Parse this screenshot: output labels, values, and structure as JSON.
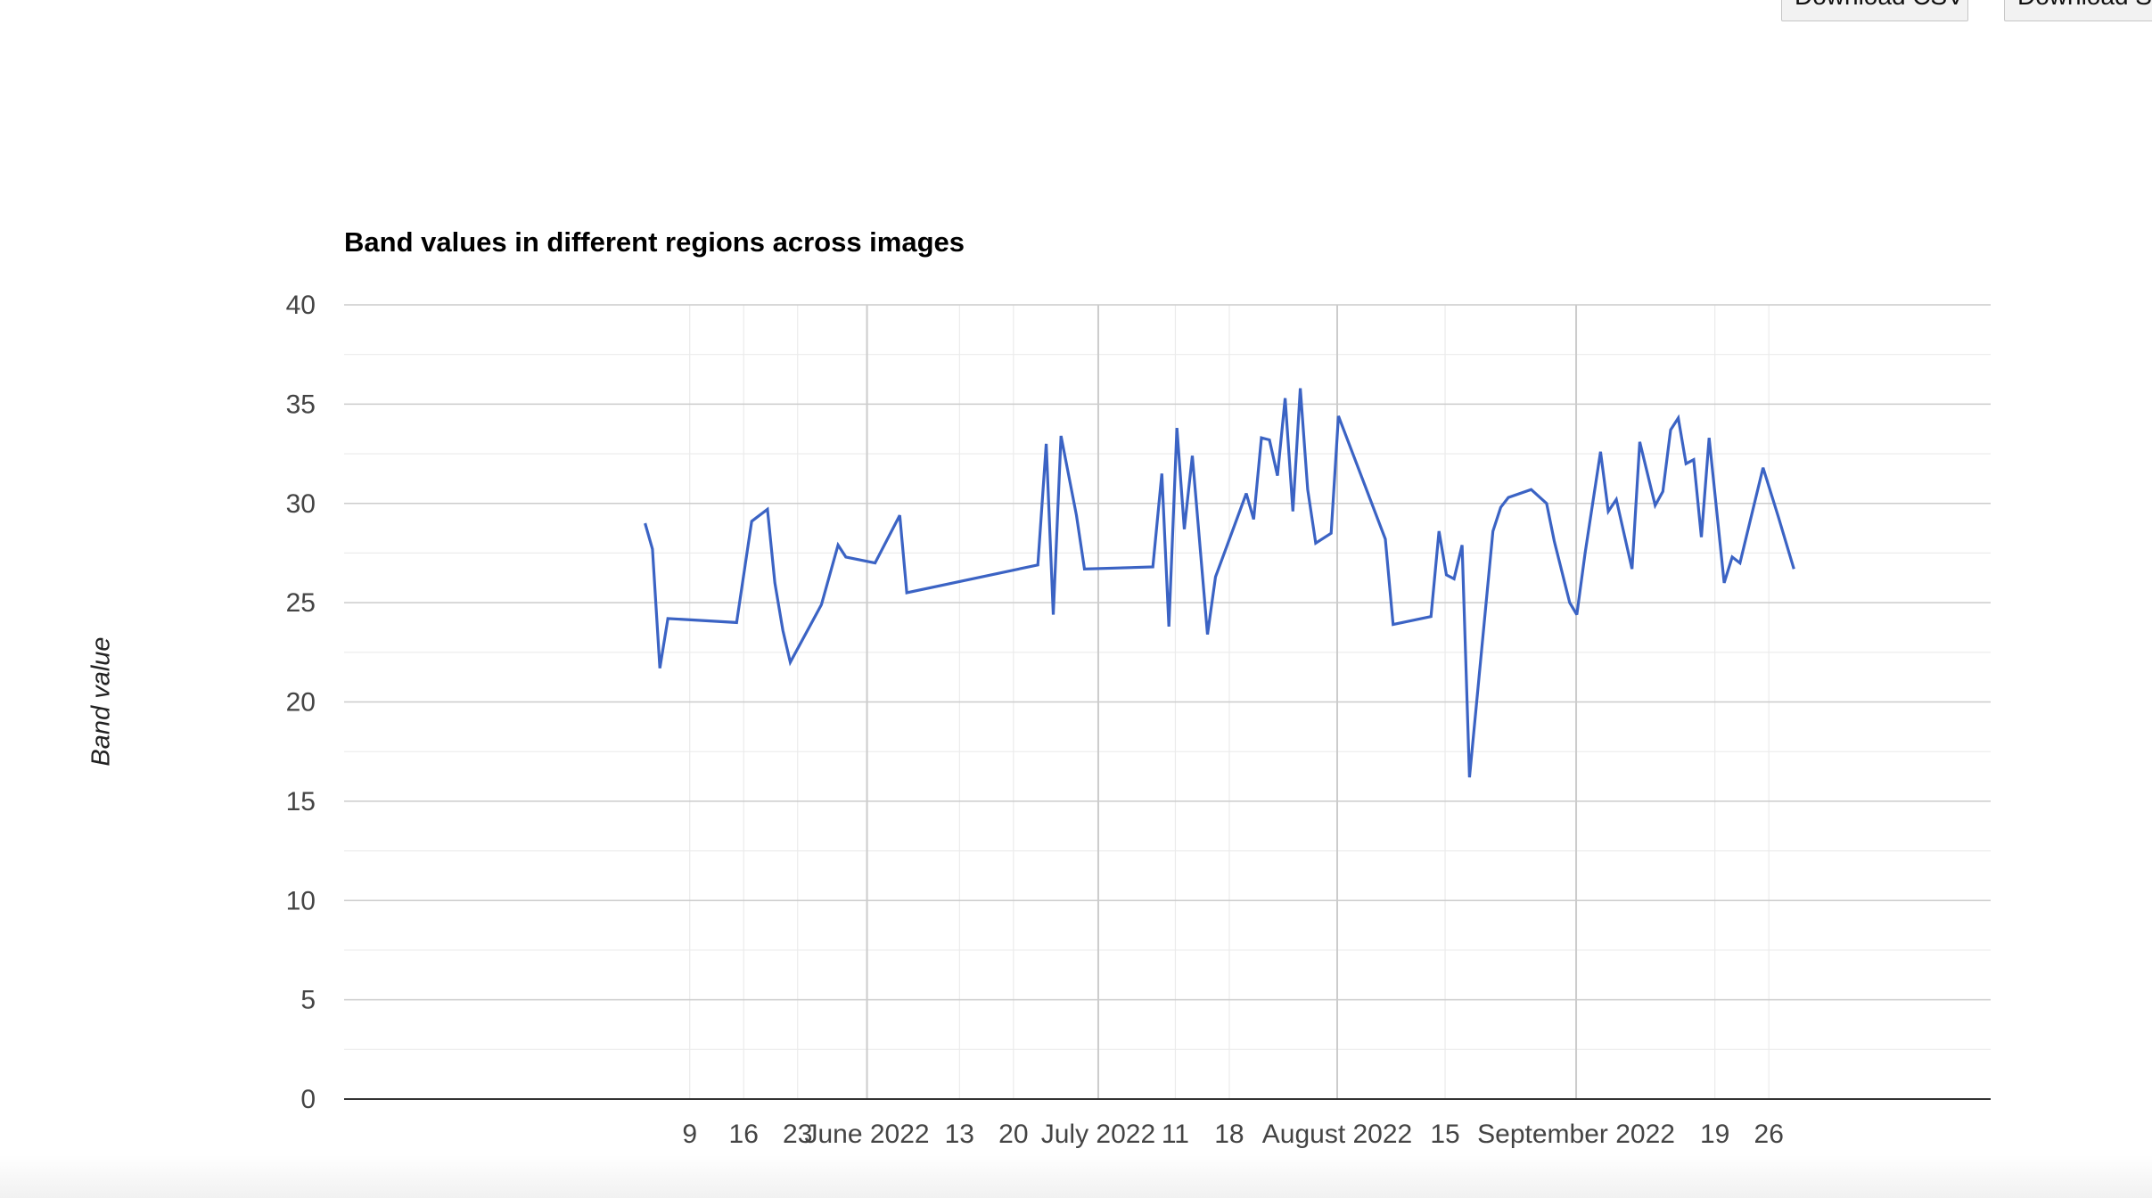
{
  "toolbar": {
    "download_csv_label": "Download CSV",
    "download_svg_label": "Download SVG"
  },
  "colors": {
    "series": "#3b63c4",
    "major_grid": "#cccccc",
    "minor_grid": "#ebebeb",
    "axis": "#333333",
    "text": "#444444"
  },
  "chart_data": {
    "type": "line",
    "title": "Band values in different regions across images",
    "xlabel": "",
    "ylabel": "Band value",
    "ylim": [
      0,
      40
    ],
    "xlim": [
      "2022-05-05",
      "2022-09-30"
    ],
    "grid": true,
    "y_ticks": [
      "0",
      "5",
      "10",
      "15",
      "20",
      "25",
      "30",
      "35",
      "40"
    ],
    "x_ticks": [
      {
        "date": "2022-05-09",
        "label": "9"
      },
      {
        "date": "2022-05-16",
        "label": "16"
      },
      {
        "date": "2022-05-23",
        "label": "23"
      },
      {
        "date": "2022-06-01",
        "label": "June 2022",
        "major": true
      },
      {
        "date": "2022-06-13",
        "label": "13"
      },
      {
        "date": "2022-06-20",
        "label": "20"
      },
      {
        "date": "2022-07-01",
        "label": "July 2022",
        "major": true
      },
      {
        "date": "2022-07-11",
        "label": "11"
      },
      {
        "date": "2022-07-18",
        "label": "18"
      },
      {
        "date": "2022-08-01",
        "label": "August 2022",
        "major": true
      },
      {
        "date": "2022-08-15",
        "label": "15"
      },
      {
        "date": "2022-09-01",
        "label": "September 2022",
        "major": true
      },
      {
        "date": "2022-09-19",
        "label": "19"
      },
      {
        "date": "2022-09-26",
        "label": "26"
      }
    ],
    "series": [
      {
        "name": "",
        "points": [
          [
            "2022-05-03T05:00",
            29.0
          ],
          [
            "2022-05-04T04:00",
            27.7
          ],
          [
            "2022-05-05T03:00",
            21.7
          ],
          [
            "2022-05-06T04:00",
            24.2
          ],
          [
            "2022-05-15T02:00",
            24.0
          ],
          [
            "2022-05-17T01:00",
            29.1
          ],
          [
            "2022-05-19T02:00",
            29.7
          ],
          [
            "2022-05-20T01:00",
            26.0
          ],
          [
            "2022-05-21T02:00",
            23.6
          ],
          [
            "2022-05-22T01:00",
            22.0
          ],
          [
            "2022-05-26T02:00",
            24.9
          ],
          [
            "2022-05-28T06:00",
            27.9
          ],
          [
            "2022-05-29T06:00",
            27.3
          ],
          [
            "2022-06-02T01:00",
            27.0
          ],
          [
            "2022-06-05T06:00",
            29.4
          ],
          [
            "2022-06-06T04:00",
            25.5
          ],
          [
            "2022-06-23T04:00",
            26.9
          ],
          [
            "2022-06-24T06:00",
            33.0
          ],
          [
            "2022-06-25T04:00",
            24.4
          ],
          [
            "2022-06-26T04:00",
            33.4
          ],
          [
            "2022-06-28T04:00",
            29.4
          ],
          [
            "2022-06-29T05:00",
            26.7
          ],
          [
            "2022-07-08T02:00",
            26.8
          ],
          [
            "2022-07-09T06:00",
            31.5
          ],
          [
            "2022-07-10T04:00",
            23.8
          ],
          [
            "2022-07-11T05:00",
            33.8
          ],
          [
            "2022-07-12T04:00",
            28.7
          ],
          [
            "2022-07-13T05:00",
            32.4
          ],
          [
            "2022-07-15T04:00",
            23.4
          ],
          [
            "2022-07-16T05:00",
            26.3
          ],
          [
            "2022-07-20T05:00",
            30.5
          ],
          [
            "2022-07-21T04:00",
            29.2
          ],
          [
            "2022-07-22T04:00",
            33.3
          ],
          [
            "2022-07-23T05:00",
            33.2
          ],
          [
            "2022-07-24T06:00",
            31.4
          ],
          [
            "2022-07-25T06:00",
            35.3
          ],
          [
            "2022-07-26T06:00",
            29.6
          ],
          [
            "2022-07-27T05:00",
            35.8
          ],
          [
            "2022-07-28T04:00",
            30.7
          ],
          [
            "2022-07-29T05:00",
            28.0
          ],
          [
            "2022-07-31T05:00",
            28.5
          ],
          [
            "2022-08-01T04:00",
            34.4
          ],
          [
            "2022-08-07T06:00",
            28.2
          ],
          [
            "2022-08-08T06:00",
            23.9
          ],
          [
            "2022-08-13T04:00",
            24.3
          ],
          [
            "2022-08-14T05:00",
            28.6
          ],
          [
            "2022-08-15T04:00",
            26.4
          ],
          [
            "2022-08-16T04:00",
            26.2
          ],
          [
            "2022-08-17T05:00",
            27.9
          ],
          [
            "2022-08-18T04:00",
            16.2
          ],
          [
            "2022-08-21T05:00",
            28.6
          ],
          [
            "2022-08-22T05:00",
            29.8
          ],
          [
            "2022-08-23T05:00",
            30.3
          ],
          [
            "2022-08-26T04:00",
            30.7
          ],
          [
            "2022-08-28T04:00",
            30.0
          ],
          [
            "2022-08-29T04:00",
            28.1
          ],
          [
            "2022-08-31T04:00",
            25.0
          ],
          [
            "2022-09-01T02:00",
            24.4
          ],
          [
            "2022-09-02T04:00",
            27.5
          ],
          [
            "2022-09-04T04:00",
            32.6
          ],
          [
            "2022-09-05T04:00",
            29.6
          ],
          [
            "2022-09-06T05:00",
            30.2
          ],
          [
            "2022-09-08T06:00",
            26.7
          ],
          [
            "2022-09-09T06:00",
            33.1
          ],
          [
            "2022-09-11T06:00",
            29.9
          ],
          [
            "2022-09-12T06:00",
            30.6
          ],
          [
            "2022-09-13T06:00",
            33.7
          ],
          [
            "2022-09-14T06:00",
            34.3
          ],
          [
            "2022-09-15T06:00",
            32.0
          ],
          [
            "2022-09-16T06:00",
            32.2
          ],
          [
            "2022-09-17T06:00",
            28.3
          ],
          [
            "2022-09-18T06:00",
            33.3
          ],
          [
            "2022-09-20T05:00",
            26.0
          ],
          [
            "2022-09-21T06:00",
            27.3
          ],
          [
            "2022-09-22T06:00",
            27.0
          ],
          [
            "2022-09-25T06:00",
            31.8
          ],
          [
            "2022-09-27T06:00",
            29.3
          ],
          [
            "2022-09-29T06:00",
            26.7
          ]
        ]
      }
    ]
  }
}
